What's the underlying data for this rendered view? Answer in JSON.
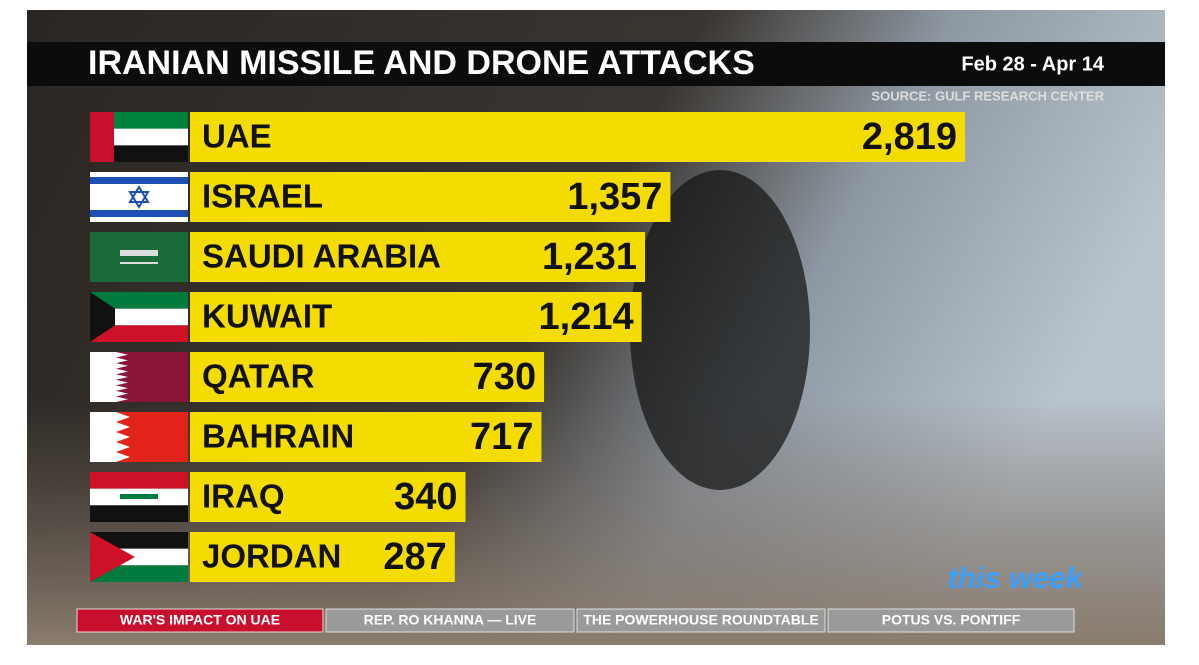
{
  "chart_data": {
    "type": "bar",
    "title": "IRANIAN MISSILE AND DRONE ATTACKS",
    "subtitle": "Feb 28 - Apr 14",
    "source": "SOURCE: GULF RESEARCH CENTER",
    "categories": [
      "UAE",
      "ISRAEL",
      "SAUDI ARABIA",
      "KUWAIT",
      "QATAR",
      "BAHRAIN",
      "IRAQ",
      "JORDAN"
    ],
    "values": [
      2819,
      1357,
      1231,
      1214,
      730,
      717,
      340,
      287
    ],
    "value_labels": [
      "2,819",
      "1,357",
      "1,231",
      "1,214",
      "730",
      "717",
      "340",
      "287"
    ],
    "color": "#f5dc00"
  },
  "ticker": {
    "items": [
      "WAR'S IMPACT ON UAE",
      "REP. RO KHANNA — LIVE",
      "THE POWERHOUSE ROUNDTABLE",
      "POTUS VS. PONTIFF"
    ]
  },
  "logo": {
    "text": "this week"
  }
}
